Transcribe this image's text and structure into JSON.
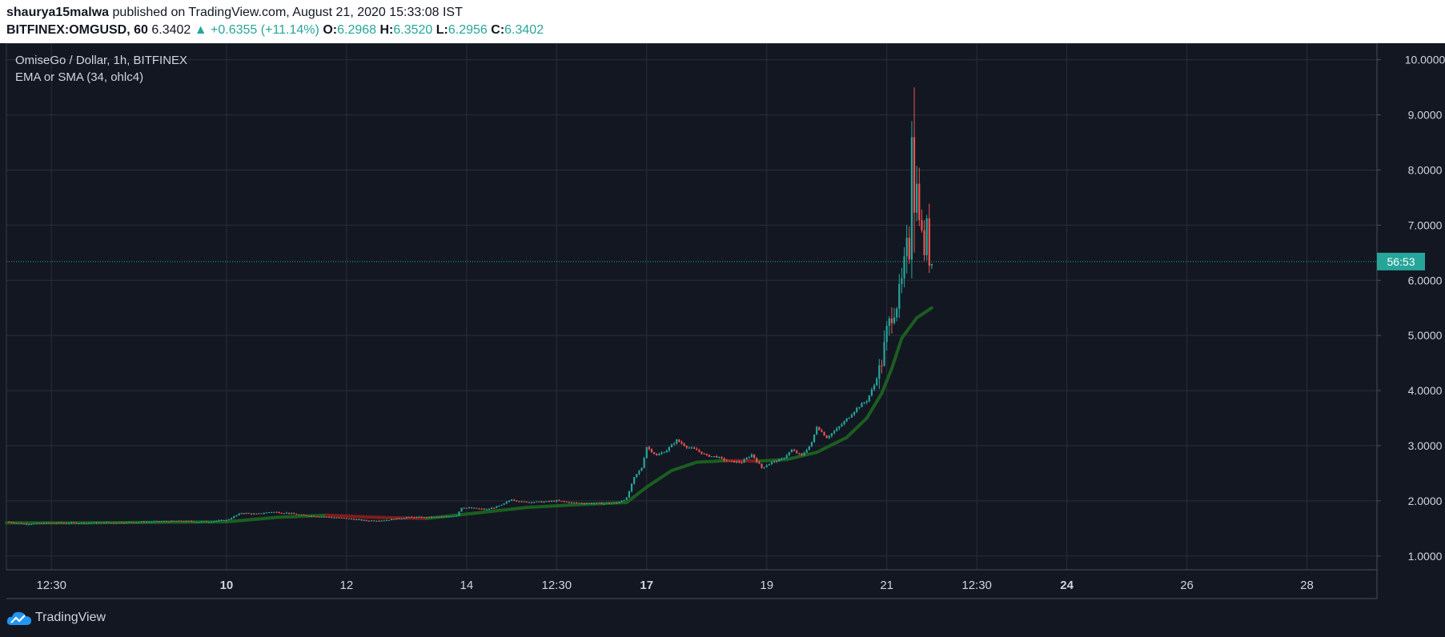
{
  "header": {
    "author": "shaurya15malwa",
    "published_text": "published on TradingView.com, August 21, 2020 15:33:08 IST",
    "symbol": "BITFINEX:OMGUSD, 60",
    "last_price": "6.3402",
    "change_arrow": "▲",
    "change": "+0.6355 (+11.14%)",
    "o_label": "O:",
    "o_value": "6.2968",
    "h_label": "H:",
    "h_value": "6.3520",
    "l_label": "L:",
    "l_value": "6.2956",
    "c_label": "C:",
    "c_value": "6.3402"
  },
  "legend": {
    "title": "OmiseGo / Dollar, 1h, BITFINEX",
    "indicator": "EMA or SMA (34, ohlc4)"
  },
  "price_label": {
    "value": 6.34,
    "text": "56:53"
  },
  "footer": {
    "brand": "TradingView",
    "logo_icon": "tradingview-cloud-icon"
  },
  "colors": {
    "background": "#131722",
    "up": "#26a69a",
    "down": "#ef5350",
    "ema_up": "#1b5e20",
    "ema_down": "#7f1d1d",
    "grid": "#2a2e39",
    "price_line": "#26a69a"
  },
  "chart_data": {
    "type": "candlestick",
    "title": "OmiseGo / Dollar, 1h, BITFINEX",
    "y_ticks": [
      "1.0000",
      "2.0000",
      "3.0000",
      "4.0000",
      "5.0000",
      "6.0000",
      "7.0000",
      "8.0000",
      "9.0000",
      "10.0000"
    ],
    "ylim": [
      0.75,
      10.3
    ],
    "x_ticks": [
      {
        "label": "12:30",
        "bold": false,
        "t": -70
      },
      {
        "label": "10",
        "bold": true,
        "t": 0
      },
      {
        "label": "12",
        "bold": false,
        "t": 48
      },
      {
        "label": "14",
        "bold": false,
        "t": 96
      },
      {
        "label": "12:30",
        "bold": false,
        "t": 132
      },
      {
        "label": "17",
        "bold": true,
        "t": 168
      },
      {
        "label": "19",
        "bold": false,
        "t": 216
      },
      {
        "label": "21",
        "bold": false,
        "t": 264
      },
      {
        "label": "12:30",
        "bold": false,
        "t": 300
      },
      {
        "label": "24",
        "bold": true,
        "t": 336
      },
      {
        "label": "26",
        "bold": false,
        "t": 384
      },
      {
        "label": "28",
        "bold": false,
        "t": 432
      }
    ],
    "price_path": [
      [
        -88,
        1.62
      ],
      [
        -80,
        1.58
      ],
      [
        -70,
        1.6
      ],
      [
        -55,
        1.6
      ],
      [
        -40,
        1.61
      ],
      [
        -20,
        1.63
      ],
      [
        -8,
        1.62
      ],
      [
        0,
        1.65
      ],
      [
        6,
        1.78
      ],
      [
        12,
        1.76
      ],
      [
        18,
        1.8
      ],
      [
        24,
        1.78
      ],
      [
        30,
        1.74
      ],
      [
        36,
        1.72
      ],
      [
        42,
        1.7
      ],
      [
        48,
        1.68
      ],
      [
        56,
        1.64
      ],
      [
        64,
        1.65
      ],
      [
        72,
        1.7
      ],
      [
        80,
        1.7
      ],
      [
        88,
        1.71
      ],
      [
        92,
        1.74
      ],
      [
        94,
        1.88
      ],
      [
        100,
        1.86
      ],
      [
        104,
        1.84
      ],
      [
        110,
        1.92
      ],
      [
        114,
        2.03
      ],
      [
        118,
        1.98
      ],
      [
        126,
        1.98
      ],
      [
        132,
        2.0
      ],
      [
        140,
        1.96
      ],
      [
        150,
        1.95
      ],
      [
        156,
        1.96
      ],
      [
        160,
        2.05
      ],
      [
        163,
        2.42
      ],
      [
        166,
        2.6
      ],
      [
        168,
        2.98
      ],
      [
        172,
        2.82
      ],
      [
        176,
        2.92
      ],
      [
        180,
        3.1
      ],
      [
        184,
        2.98
      ],
      [
        188,
        2.92
      ],
      [
        192,
        2.82
      ],
      [
        196,
        2.8
      ],
      [
        200,
        2.72
      ],
      [
        206,
        2.7
      ],
      [
        210,
        2.84
      ],
      [
        214,
        2.6
      ],
      [
        218,
        2.7
      ],
      [
        222,
        2.75
      ],
      [
        226,
        2.92
      ],
      [
        230,
        2.82
      ],
      [
        234,
        3.05
      ],
      [
        236,
        3.35
      ],
      [
        240,
        3.15
      ],
      [
        244,
        3.3
      ],
      [
        248,
        3.48
      ],
      [
        252,
        3.68
      ],
      [
        256,
        3.82
      ],
      [
        259,
        4.1
      ],
      [
        262,
        4.52
      ],
      [
        264,
        5.08
      ],
      [
        266,
        5.38
      ],
      [
        268,
        5.58
      ],
      [
        270,
        5.95
      ],
      [
        272,
        6.6
      ],
      [
        273,
        6.5
      ],
      [
        274,
        8.8
      ],
      [
        275,
        7.4
      ],
      [
        276,
        7.7
      ],
      [
        277,
        7.3
      ],
      [
        278,
        6.8
      ],
      [
        279,
        6.55
      ],
      [
        280,
        6.95
      ],
      [
        281,
        6.4
      ],
      [
        282,
        6.34
      ]
    ],
    "ema_path": [
      [
        -88,
        1.6
      ],
      [
        -60,
        1.6
      ],
      [
        -30,
        1.61
      ],
      [
        0,
        1.62
      ],
      [
        20,
        1.7
      ],
      [
        40,
        1.74
      ],
      [
        60,
        1.7
      ],
      [
        80,
        1.68
      ],
      [
        100,
        1.78
      ],
      [
        120,
        1.88
      ],
      [
        140,
        1.93
      ],
      [
        160,
        1.97
      ],
      [
        168,
        2.25
      ],
      [
        178,
        2.55
      ],
      [
        188,
        2.7
      ],
      [
        200,
        2.73
      ],
      [
        212,
        2.72
      ],
      [
        224,
        2.75
      ],
      [
        236,
        2.88
      ],
      [
        248,
        3.15
      ],
      [
        256,
        3.5
      ],
      [
        262,
        3.95
      ],
      [
        266,
        4.4
      ],
      [
        270,
        4.95
      ],
      [
        276,
        5.32
      ],
      [
        282,
        5.5
      ]
    ],
    "spike": {
      "t": 275,
      "high": 9.5,
      "low": 6.5
    }
  }
}
